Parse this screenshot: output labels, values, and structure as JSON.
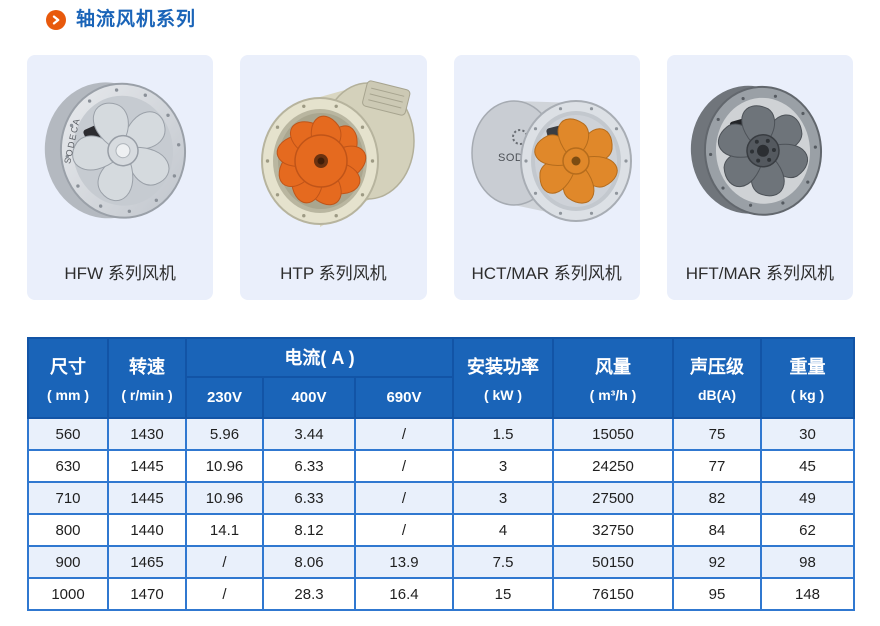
{
  "header": {
    "title": "轴流风机系列",
    "icon": "chevron-right"
  },
  "colors": {
    "accent_orange": "#E8590C",
    "title_blue": "#1A64B8",
    "table_header_blue": "#1A64B8",
    "table_header_border": "#1254A6",
    "table_border_blue": "#3078D0",
    "row_alt_blue": "#E9F0FB",
    "card_bg": "#EAEFFB"
  },
  "products": [
    {
      "label": "HFW 系列风机",
      "image": "hfw-silver-axial-fan",
      "brand_text": "SODECA"
    },
    {
      "label": "HTP 系列风机",
      "image": "htp-orange-impeller-axial-fan",
      "brand_text": ""
    },
    {
      "label": "HCT/MAR 系列风机",
      "image": "hct-mar-silver-orange-axial-fan",
      "brand_text": "SODECA"
    },
    {
      "label": "HFT/MAR 系列风机",
      "image": "hft-mar-dark-axial-fan",
      "brand_text": ""
    }
  ],
  "table": {
    "columns": {
      "size_label": "尺寸",
      "size_unit": "( mm )",
      "speed_label": "转速",
      "speed_unit": "( r/min )",
      "current_label": "电流( A )",
      "current_subcols": [
        "230V",
        "400V",
        "690V"
      ],
      "power_label": "安装功率",
      "power_unit": "( kW )",
      "airflow_label": "风量",
      "airflow_unit": "( m³/h )",
      "noise_label": "声压级",
      "noise_unit": "dB(A)",
      "weight_label": "重量",
      "weight_unit": "( kg )"
    },
    "rows": [
      [
        "560",
        "1430",
        "5.96",
        "3.44",
        "/",
        "1.5",
        "15050",
        "75",
        "30"
      ],
      [
        "630",
        "1445",
        "10.96",
        "6.33",
        "/",
        "3",
        "24250",
        "77",
        "45"
      ],
      [
        "710",
        "1445",
        "10.96",
        "6.33",
        "/",
        "3",
        "27500",
        "82",
        "49"
      ],
      [
        "800",
        "1440",
        "14.1",
        "8.12",
        "/",
        "4",
        "32750",
        "84",
        "62"
      ],
      [
        "900",
        "1465",
        "/",
        "8.06",
        "13.9",
        "7.5",
        "50150",
        "92",
        "98"
      ],
      [
        "1000",
        "1470",
        "/",
        "28.3",
        "16.4",
        "15",
        "76150",
        "95",
        "148"
      ]
    ]
  }
}
